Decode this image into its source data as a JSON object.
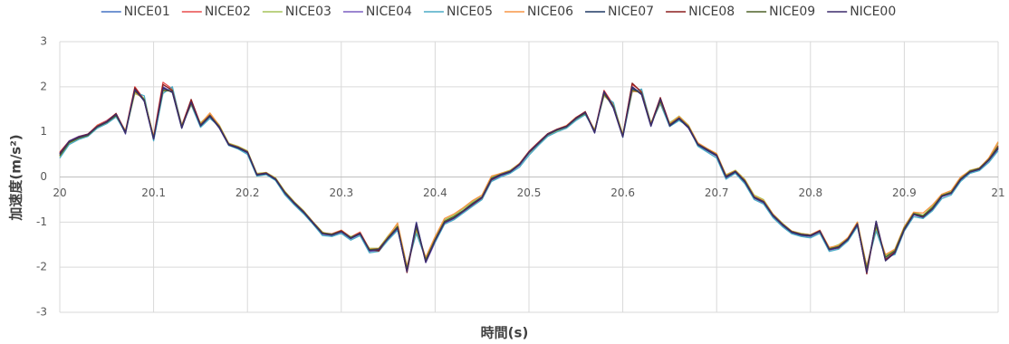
{
  "chart_data": {
    "type": "line",
    "x": [
      20,
      20.01,
      20.02,
      20.03,
      20.04,
      20.05,
      20.06,
      20.07,
      20.08,
      20.09,
      20.1,
      20.11,
      20.12,
      20.13,
      20.14,
      20.15,
      20.16,
      20.17,
      20.18,
      20.19,
      20.2,
      20.21,
      20.22,
      20.23,
      20.24,
      20.25,
      20.26,
      20.27,
      20.28,
      20.29,
      20.3,
      20.31,
      20.32,
      20.33,
      20.34,
      20.35,
      20.36,
      20.37,
      20.38,
      20.39,
      20.4,
      20.41,
      20.42,
      20.43,
      20.44,
      20.45,
      20.46,
      20.47,
      20.48,
      20.49,
      20.5,
      20.51,
      20.52,
      20.53,
      20.54,
      20.55,
      20.56,
      20.57,
      20.58,
      20.59,
      20.6,
      20.61,
      20.62,
      20.63,
      20.64,
      20.65,
      20.66,
      20.67,
      20.68,
      20.69,
      20.7,
      20.71,
      20.72,
      20.73,
      20.74,
      20.75,
      20.76,
      20.77,
      20.78,
      20.79,
      20.8,
      20.81,
      20.82,
      20.83,
      20.84,
      20.85,
      20.86,
      20.87,
      20.88,
      20.89,
      20.9,
      20.91,
      20.92,
      20.93,
      20.94,
      20.95,
      20.96,
      20.97,
      20.98,
      20.99,
      21
    ],
    "xlabel": "時間(s)",
    "ylabel": "加速度(m/s²)",
    "xlim": [
      20,
      21
    ],
    "xticks": [
      20,
      20.1,
      20.2,
      20.3,
      20.4,
      20.5,
      20.6,
      20.7,
      20.8,
      20.9,
      21
    ],
    "ylim": [
      -3,
      3
    ],
    "yticks": [
      -3,
      -2,
      -1,
      0,
      1,
      2,
      3
    ],
    "grid": true,
    "legend": "top",
    "series": [
      {
        "name": "NICE01",
        "color": "#4472c4",
        "values": [
          0.5,
          0.78,
          0.87,
          0.93,
          1.12,
          1.22,
          1.38,
          1.0,
          1.92,
          1.7,
          0.85,
          1.95,
          1.9,
          1.1,
          1.65,
          1.15,
          1.35,
          1.1,
          0.72,
          0.65,
          0.55,
          0.05,
          0.08,
          -0.05,
          -0.35,
          -0.58,
          -0.78,
          -1.02,
          -1.25,
          -1.28,
          -1.2,
          -1.35,
          -1.25,
          -1.62,
          -1.6,
          -1.35,
          -1.12,
          -2.05,
          -1.1,
          -1.85,
          -1.4,
          -1.0,
          -0.9,
          -0.75,
          -0.6,
          -0.45,
          -0.05,
          0.05,
          0.12,
          0.28,
          0.55,
          0.75,
          0.95,
          1.05,
          1.12,
          1.3,
          1.42,
          1.0,
          1.85,
          1.55,
          0.9,
          1.95,
          1.85,
          1.15,
          1.7,
          1.15,
          1.3,
          1.1,
          0.72,
          0.6,
          0.48,
          0.0,
          0.12,
          -0.1,
          -0.45,
          -0.55,
          -0.85,
          -1.05,
          -1.22,
          -1.28,
          -1.3,
          -1.2,
          -1.6,
          -1.55,
          -1.38,
          -1.05,
          -2.05,
          -1.05,
          -1.8,
          -1.65,
          -1.15,
          -0.82,
          -0.88,
          -0.7,
          -0.42,
          -0.35,
          -0.05,
          0.12,
          0.18,
          0.38,
          0.65
        ]
      },
      {
        "name": "NICE02",
        "color": "#e84c4c",
        "values": [
          0.55,
          0.8,
          0.88,
          0.95,
          1.15,
          1.25,
          1.4,
          1.02,
          2.0,
          1.72,
          0.9,
          2.1,
          1.95,
          1.15,
          1.7,
          1.18,
          1.38,
          1.12,
          0.74,
          0.66,
          0.56,
          0.06,
          0.1,
          -0.04,
          -0.34,
          -0.56,
          -0.76,
          -1.0,
          -1.24,
          -1.26,
          -1.18,
          -1.33,
          -1.22,
          -1.6,
          -1.62,
          -1.33,
          -1.1,
          -2.1,
          -1.05,
          -1.88,
          -1.42,
          -1.02,
          -0.92,
          -0.76,
          -0.62,
          -0.46,
          -0.06,
          0.04,
          0.12,
          0.3,
          0.57,
          0.77,
          0.96,
          1.06,
          1.14,
          1.32,
          1.44,
          1.02,
          1.92,
          1.6,
          0.92,
          2.05,
          1.9,
          1.18,
          1.75,
          1.18,
          1.32,
          1.12,
          0.74,
          0.62,
          0.5,
          0.02,
          0.14,
          -0.08,
          -0.44,
          -0.54,
          -0.84,
          -1.04,
          -1.2,
          -1.26,
          -1.28,
          -1.18,
          -1.58,
          -1.56,
          -1.36,
          -1.02,
          -2.1,
          -1.0,
          -1.82,
          -1.66,
          -1.16,
          -0.8,
          -0.86,
          -0.68,
          -0.4,
          -0.34,
          -0.04,
          0.13,
          0.2,
          0.4,
          0.7
        ]
      },
      {
        "name": "NICE03",
        "color": "#a5c45a",
        "values": [
          0.45,
          0.75,
          0.85,
          0.92,
          1.1,
          1.2,
          1.36,
          0.98,
          1.85,
          1.75,
          0.88,
          1.9,
          1.95,
          1.15,
          1.6,
          1.2,
          1.4,
          1.15,
          0.75,
          0.68,
          0.58,
          0.08,
          0.1,
          -0.02,
          -0.32,
          -0.55,
          -0.75,
          -1.0,
          -1.22,
          -1.3,
          -1.22,
          -1.32,
          -1.28,
          -1.58,
          -1.58,
          -1.3,
          -1.05,
          -2.0,
          -1.2,
          -1.8,
          -1.35,
          -0.95,
          -0.85,
          -0.7,
          -0.55,
          -0.4,
          0.0,
          0.08,
          0.15,
          0.3,
          0.52,
          0.72,
          0.92,
          1.02,
          1.1,
          1.28,
          1.4,
          1.05,
          1.8,
          1.6,
          0.95,
          1.9,
          1.9,
          1.2,
          1.65,
          1.2,
          1.35,
          1.15,
          0.75,
          0.62,
          0.5,
          0.05,
          0.15,
          -0.05,
          -0.4,
          -0.5,
          -0.82,
          -1.02,
          -1.2,
          -1.25,
          -1.28,
          -1.22,
          -1.58,
          -1.5,
          -1.35,
          -1.0,
          -2.0,
          -1.15,
          -1.75,
          -1.6,
          -1.1,
          -0.78,
          -0.85,
          -0.65,
          -0.4,
          -0.32,
          -0.02,
          0.15,
          0.2,
          0.4,
          0.75
        ]
      },
      {
        "name": "NICE04",
        "color": "#7b5fc0",
        "values": [
          0.52,
          0.8,
          0.9,
          0.95,
          1.13,
          1.24,
          1.4,
          0.95,
          1.95,
          1.68,
          0.82,
          2.0,
          1.88,
          1.08,
          1.68,
          1.12,
          1.36,
          1.08,
          0.7,
          0.64,
          0.53,
          0.03,
          0.07,
          -0.07,
          -0.38,
          -0.6,
          -0.8,
          -1.04,
          -1.27,
          -1.3,
          -1.22,
          -1.37,
          -1.27,
          -1.65,
          -1.63,
          -1.38,
          -1.15,
          -2.08,
          -1.0,
          -1.9,
          -1.45,
          -1.03,
          -0.93,
          -0.78,
          -0.63,
          -0.48,
          -0.08,
          0.03,
          0.1,
          0.26,
          0.53,
          0.73,
          0.93,
          1.04,
          1.1,
          1.28,
          1.43,
          0.97,
          1.9,
          1.52,
          0.88,
          2.0,
          1.82,
          1.12,
          1.72,
          1.12,
          1.28,
          1.08,
          0.7,
          0.58,
          0.46,
          -0.02,
          0.1,
          -0.12,
          -0.47,
          -0.58,
          -0.88,
          -1.07,
          -1.24,
          -1.3,
          -1.32,
          -1.22,
          -1.62,
          -1.58,
          -1.4,
          -1.08,
          -2.08,
          -0.98,
          -1.83,
          -1.7,
          -1.18,
          -0.84,
          -0.9,
          -0.72,
          -0.44,
          -0.37,
          -0.07,
          0.1,
          0.16,
          0.36,
          0.62
        ]
      },
      {
        "name": "NICE05",
        "color": "#4bacc6",
        "values": [
          0.42,
          0.72,
          0.83,
          0.9,
          1.08,
          1.18,
          1.33,
          0.98,
          1.88,
          1.8,
          0.8,
          1.85,
          2.0,
          1.12,
          1.6,
          1.1,
          1.3,
          1.12,
          0.7,
          0.62,
          0.5,
          0.02,
          0.05,
          -0.08,
          -0.4,
          -0.62,
          -0.82,
          -1.05,
          -1.3,
          -1.32,
          -1.25,
          -1.4,
          -1.3,
          -1.68,
          -1.65,
          -1.4,
          -1.18,
          -2.0,
          -1.25,
          -1.82,
          -1.45,
          -1.05,
          -0.95,
          -0.8,
          -0.65,
          -0.5,
          -0.1,
          0.0,
          0.08,
          0.22,
          0.48,
          0.7,
          0.9,
          1.0,
          1.08,
          1.25,
          1.38,
          1.02,
          1.8,
          1.65,
          0.88,
          1.88,
          1.95,
          1.18,
          1.62,
          1.12,
          1.25,
          1.12,
          0.68,
          0.55,
          0.42,
          -0.05,
          0.08,
          -0.15,
          -0.5,
          -0.6,
          -0.9,
          -1.1,
          -1.26,
          -1.32,
          -1.35,
          -1.25,
          -1.65,
          -1.6,
          -1.42,
          -1.1,
          -1.98,
          -1.2,
          -1.78,
          -1.72,
          -1.2,
          -0.88,
          -0.92,
          -0.75,
          -0.48,
          -0.4,
          -0.1,
          0.08,
          0.14,
          0.32,
          0.58
        ]
      },
      {
        "name": "NICE06",
        "color": "#f79646",
        "values": [
          0.48,
          0.77,
          0.86,
          0.94,
          1.14,
          1.23,
          1.37,
          1.03,
          1.88,
          1.72,
          0.9,
          1.92,
          1.92,
          1.12,
          1.62,
          1.18,
          1.42,
          1.14,
          0.74,
          0.67,
          0.57,
          0.07,
          0.09,
          -0.03,
          -0.33,
          -0.56,
          -0.76,
          -1.0,
          -1.23,
          -1.27,
          -1.18,
          -1.34,
          -1.23,
          -1.6,
          -1.58,
          -1.32,
          -1.02,
          -1.98,
          -1.15,
          -1.78,
          -1.32,
          -0.92,
          -0.82,
          -0.68,
          -0.52,
          -0.4,
          0.02,
          0.08,
          0.14,
          0.3,
          0.56,
          0.76,
          0.96,
          1.06,
          1.14,
          1.32,
          1.42,
          1.04,
          1.82,
          1.58,
          0.94,
          1.9,
          1.88,
          1.18,
          1.66,
          1.18,
          1.34,
          1.14,
          0.76,
          0.63,
          0.52,
          0.04,
          0.14,
          -0.06,
          -0.42,
          -0.52,
          -0.82,
          -1.03,
          -1.2,
          -1.26,
          -1.28,
          -1.18,
          -1.56,
          -1.52,
          -1.34,
          -1.0,
          -1.98,
          -1.1,
          -1.72,
          -1.6,
          -1.1,
          -0.78,
          -0.8,
          -0.62,
          -0.38,
          -0.3,
          0.0,
          0.14,
          0.2,
          0.42,
          0.78
        ]
      },
      {
        "name": "NICE07",
        "color": "#1f3864",
        "values": [
          0.5,
          0.77,
          0.88,
          0.93,
          1.11,
          1.21,
          1.39,
          0.97,
          1.95,
          1.68,
          0.84,
          1.98,
          1.87,
          1.08,
          1.67,
          1.13,
          1.34,
          1.09,
          0.71,
          0.64,
          0.54,
          0.04,
          0.07,
          -0.06,
          -0.36,
          -0.59,
          -0.79,
          -1.03,
          -1.26,
          -1.29,
          -1.21,
          -1.36,
          -1.26,
          -1.63,
          -1.61,
          -1.36,
          -1.13,
          -2.08,
          -1.02,
          -1.87,
          -1.41,
          -1.01,
          -0.91,
          -0.76,
          -0.61,
          -0.46,
          -0.06,
          0.04,
          0.11,
          0.27,
          0.54,
          0.74,
          0.94,
          1.04,
          1.11,
          1.29,
          1.43,
          0.98,
          1.88,
          1.53,
          0.89,
          1.98,
          1.83,
          1.13,
          1.72,
          1.13,
          1.29,
          1.09,
          0.71,
          0.59,
          0.47,
          -0.01,
          0.11,
          -0.11,
          -0.46,
          -0.56,
          -0.86,
          -1.06,
          -1.23,
          -1.29,
          -1.31,
          -1.21,
          -1.61,
          -1.56,
          -1.39,
          -1.06,
          -2.1,
          -0.98,
          -1.85,
          -1.66,
          -1.16,
          -0.83,
          -0.89,
          -0.71,
          -0.43,
          -0.36,
          -0.06,
          0.11,
          0.17,
          0.37,
          0.63
        ]
      },
      {
        "name": "NICE08",
        "color": "#8b1e1e",
        "values": [
          0.53,
          0.79,
          0.89,
          0.95,
          1.13,
          1.23,
          1.41,
          0.99,
          1.98,
          1.7,
          0.86,
          2.05,
          1.92,
          1.12,
          1.72,
          1.16,
          1.37,
          1.11,
          0.73,
          0.66,
          0.56,
          0.06,
          0.09,
          -0.04,
          -0.34,
          -0.57,
          -0.77,
          -1.01,
          -1.24,
          -1.27,
          -1.19,
          -1.34,
          -1.24,
          -1.61,
          -1.64,
          -1.34,
          -1.1,
          -2.12,
          -1.08,
          -1.87,
          -1.4,
          -1.01,
          -0.91,
          -0.76,
          -0.61,
          -0.46,
          -0.06,
          0.05,
          0.12,
          0.29,
          0.56,
          0.76,
          0.96,
          1.06,
          1.13,
          1.31,
          1.45,
          1.01,
          1.9,
          1.57,
          0.91,
          2.08,
          1.88,
          1.16,
          1.76,
          1.16,
          1.31,
          1.11,
          0.73,
          0.61,
          0.49,
          0.01,
          0.13,
          -0.09,
          -0.45,
          -0.55,
          -0.85,
          -1.05,
          -1.21,
          -1.27,
          -1.29,
          -1.19,
          -1.59,
          -1.57,
          -1.37,
          -1.03,
          -2.15,
          -1.0,
          -1.83,
          -1.67,
          -1.17,
          -0.81,
          -0.87,
          -0.69,
          -0.41,
          -0.34,
          -0.04,
          0.12,
          0.19,
          0.39,
          0.68
        ]
      },
      {
        "name": "NICE09",
        "color": "#4f6228",
        "values": [
          0.47,
          0.76,
          0.86,
          0.92,
          1.11,
          1.21,
          1.36,
          1.01,
          1.9,
          1.72,
          0.87,
          1.92,
          1.9,
          1.12,
          1.63,
          1.16,
          1.36,
          1.12,
          0.73,
          0.66,
          0.56,
          0.06,
          0.08,
          -0.04,
          -0.34,
          -0.57,
          -0.77,
          -1.01,
          -1.24,
          -1.27,
          -1.21,
          -1.34,
          -1.26,
          -1.61,
          -1.59,
          -1.34,
          -1.1,
          -2.03,
          -1.12,
          -1.83,
          -1.38,
          -0.98,
          -0.88,
          -0.74,
          -0.58,
          -0.44,
          -0.03,
          0.06,
          0.13,
          0.28,
          0.54,
          0.74,
          0.94,
          1.04,
          1.11,
          1.29,
          1.41,
          1.02,
          1.84,
          1.57,
          0.92,
          1.93,
          1.86,
          1.16,
          1.68,
          1.16,
          1.31,
          1.12,
          0.73,
          0.61,
          0.49,
          0.02,
          0.13,
          -0.08,
          -0.44,
          -0.54,
          -0.84,
          -1.04,
          -1.21,
          -1.27,
          -1.29,
          -1.21,
          -1.59,
          -1.54,
          -1.37,
          -1.04,
          -2.03,
          -1.08,
          -1.78,
          -1.63,
          -1.13,
          -0.81,
          -0.86,
          -0.68,
          -0.41,
          -0.34,
          -0.04,
          0.13,
          0.19,
          0.39,
          0.67
        ]
      },
      {
        "name": "NICE00",
        "color": "#3b2a6b",
        "values": [
          0.51,
          0.79,
          0.88,
          0.94,
          1.12,
          1.22,
          1.39,
          0.99,
          1.94,
          1.69,
          0.84,
          1.97,
          1.89,
          1.09,
          1.66,
          1.14,
          1.35,
          1.1,
          0.72,
          0.65,
          0.55,
          0.05,
          0.08,
          -0.05,
          -0.36,
          -0.58,
          -0.78,
          -1.02,
          -1.26,
          -1.29,
          -1.21,
          -1.36,
          -1.25,
          -1.63,
          -1.61,
          -1.36,
          -1.13,
          -2.1,
          -1.04,
          -1.89,
          -1.41,
          -1.01,
          -0.91,
          -0.76,
          -0.6,
          -0.45,
          -0.05,
          0.05,
          0.12,
          0.28,
          0.55,
          0.75,
          0.95,
          1.05,
          1.12,
          1.3,
          1.43,
          0.99,
          1.89,
          1.54,
          0.89,
          2.0,
          1.84,
          1.14,
          1.73,
          1.14,
          1.3,
          1.1,
          0.72,
          0.6,
          0.48,
          0.0,
          0.12,
          -0.1,
          -0.45,
          -0.55,
          -0.85,
          -1.05,
          -1.22,
          -1.28,
          -1.3,
          -1.2,
          -1.61,
          -1.56,
          -1.38,
          -1.05,
          -2.12,
          -0.99,
          -1.86,
          -1.68,
          -1.17,
          -0.83,
          -0.89,
          -0.71,
          -0.43,
          -0.36,
          -0.06,
          0.11,
          0.17,
          0.37,
          0.64
        ]
      }
    ]
  }
}
